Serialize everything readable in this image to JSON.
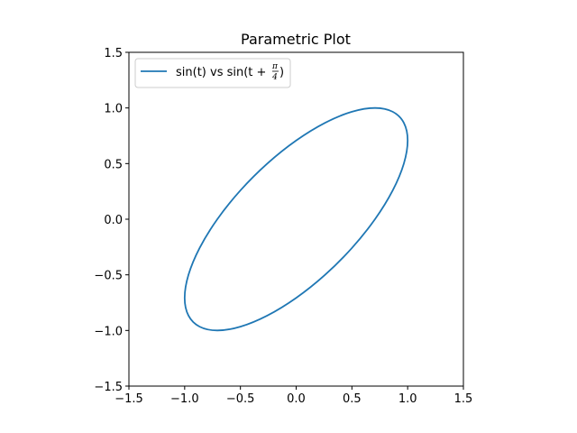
{
  "chart_data": {
    "type": "line",
    "title": "Parametric Plot",
    "xlabel": "",
    "ylabel": "",
    "xlim": [
      -1.5,
      1.5
    ],
    "ylim": [
      -1.5,
      1.5
    ],
    "x_ticks": [
      -1.5,
      -1.0,
      -0.5,
      0.0,
      0.5,
      1.0,
      1.5
    ],
    "x_tick_labels": [
      "−1.5",
      "−1.0",
      "−0.5",
      "0.0",
      "0.5",
      "1.0",
      "1.5"
    ],
    "y_ticks": [
      -1.5,
      -1.0,
      -0.5,
      0.0,
      0.5,
      1.0,
      1.5
    ],
    "y_tick_labels": [
      "−1.5",
      "−1.0",
      "−0.5",
      "0.0",
      "0.5",
      "1.0",
      "1.5"
    ],
    "grid": false,
    "legend_position": "upper-left",
    "series": [
      {
        "name": "sin(t) vs sin(t + π/4)",
        "legend_main": "sin(t) vs sin(t +",
        "legend_frac_num": "π",
        "legend_frac_den": "4",
        "legend_close": ")",
        "color": "#1f77b4",
        "x": [
          0.0,
          0.2588,
          0.5,
          0.7071,
          0.866,
          0.9659,
          1.0,
          0.9659,
          0.866,
          0.7071,
          0.5,
          0.2588,
          0.0,
          -0.2588,
          -0.5,
          -0.7071,
          -0.866,
          -0.9659,
          -1.0,
          -0.9659,
          -0.866,
          -0.7071,
          -0.5,
          -0.2588,
          0.0
        ],
        "y": [
          0.7071,
          0.866,
          0.9659,
          1.0,
          0.9659,
          0.866,
          0.7071,
          0.5,
          0.2588,
          0.0,
          -0.2588,
          -0.5,
          -0.7071,
          -0.866,
          -0.9659,
          -1.0,
          -0.9659,
          -0.866,
          -0.7071,
          -0.5,
          -0.2588,
          0.0,
          0.2588,
          0.5,
          0.7071
        ]
      }
    ]
  }
}
